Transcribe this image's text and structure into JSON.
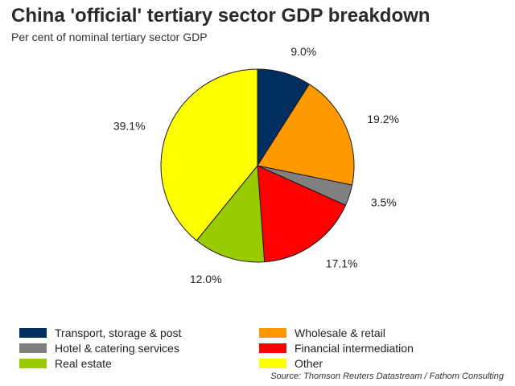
{
  "title": "China 'official' tertiary sector GDP breakdown",
  "subtitle": "Per cent of nominal tertiary sector GDP",
  "source": "Source: Thomson Reuters Datastream / Fathom Consulting",
  "chart_data": {
    "type": "pie",
    "title": "China 'official' tertiary sector GDP breakdown",
    "subtitle": "Per cent of nominal tertiary sector GDP",
    "unit": "%",
    "start_angle_deg": 0,
    "direction": "clockwise",
    "legend_position": "bottom",
    "slices": [
      {
        "name": "Transport, storage & post",
        "value": 9.0,
        "label": "9.0%",
        "color": "#002e5e"
      },
      {
        "name": "Wholesale & retail",
        "value": 19.2,
        "label": "19.2%",
        "color": "#ff9900"
      },
      {
        "name": "Hotel & catering services",
        "value": 3.5,
        "label": "3.5%",
        "color": "#808080"
      },
      {
        "name": "Financial intermediation",
        "value": 17.1,
        "label": "17.1%",
        "color": "#ff0000"
      },
      {
        "name": "Real estate",
        "value": 12.0,
        "label": "12.0%",
        "color": "#99cc00"
      },
      {
        "name": "Other",
        "value": 39.1,
        "label": "39.1%",
        "color": "#ffff00"
      }
    ]
  }
}
